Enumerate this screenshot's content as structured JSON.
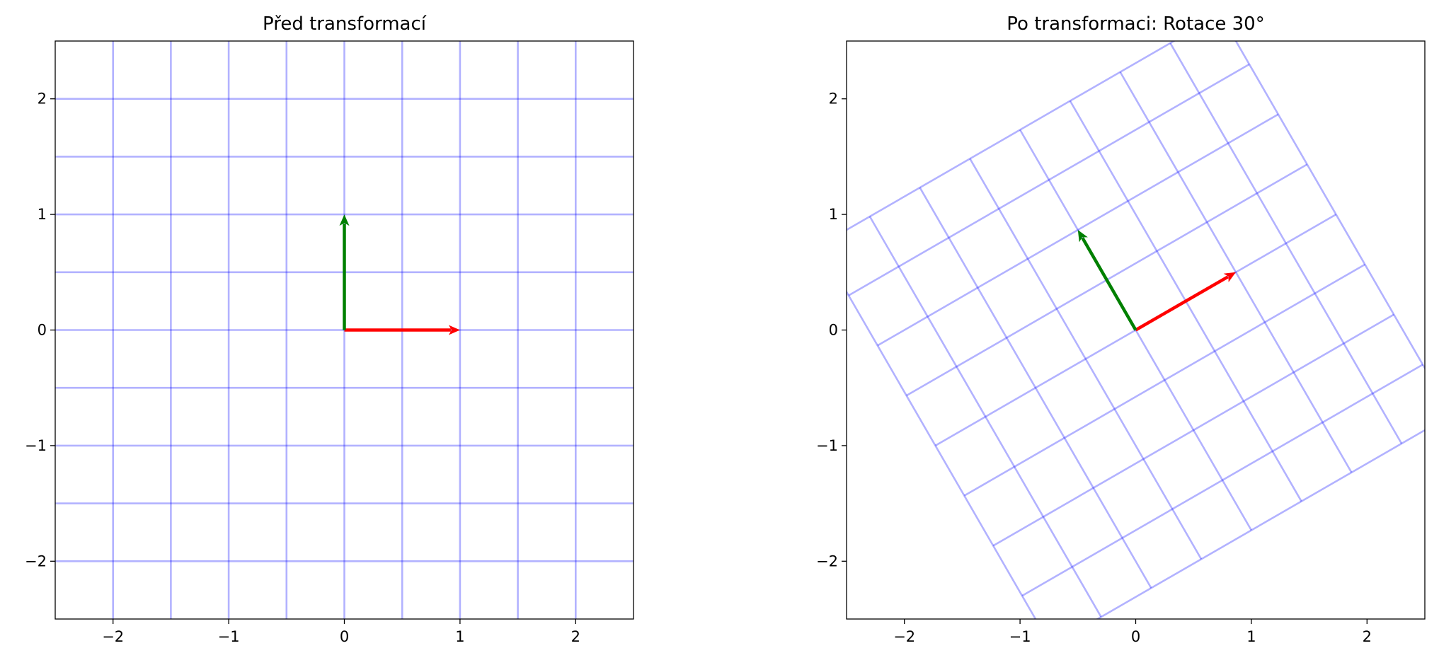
{
  "chart_data": [
    {
      "type": "vector-grid",
      "title": "Před transformací",
      "rotation_deg": 0,
      "grid": {
        "values": [
          -2,
          -1.5,
          -1,
          -0.5,
          0,
          0.5,
          1,
          1.5,
          2
        ],
        "extent": [
          -2.5,
          2.5
        ],
        "color": "#0000ff"
      },
      "vectors": [
        {
          "color": "#ff0000",
          "values": [
            1,
            0
          ]
        },
        {
          "color": "#008000",
          "values": [
            0,
            1
          ]
        }
      ],
      "xlim": [
        -2.5,
        2.5
      ],
      "ylim": [
        -2.5,
        2.5
      ],
      "xticks": [
        {
          "value": -2,
          "label": "−2"
        },
        {
          "value": -1,
          "label": "−1"
        },
        0,
        1,
        2
      ],
      "yticks": [
        {
          "value": -2,
          "label": "−2"
        },
        {
          "value": -1,
          "label": "−1"
        },
        0,
        1,
        2
      ]
    },
    {
      "type": "vector-grid",
      "title": "Po transformaci: Rotace 30°",
      "rotation_deg": 30,
      "grid": {
        "values": [
          -2,
          -1.5,
          -1,
          -0.5,
          0,
          0.5,
          1,
          1.5,
          2
        ],
        "extent": [
          -2,
          2
        ],
        "color": "#0000ff"
      },
      "vectors": [
        {
          "color": "#ff0000",
          "values": [
            1,
            0
          ]
        },
        {
          "color": "#008000",
          "values": [
            0,
            1
          ]
        }
      ],
      "xlim": [
        -2.5,
        2.5
      ],
      "ylim": [
        -2.5,
        2.5
      ],
      "xticks": [
        {
          "value": -2,
          "label": "−2"
        },
        {
          "value": -1,
          "label": "−1"
        },
        0,
        1,
        2
      ],
      "yticks": [
        {
          "value": -2,
          "label": "−2"
        },
        {
          "value": -1,
          "label": "−1"
        },
        0,
        1,
        2
      ]
    }
  ]
}
